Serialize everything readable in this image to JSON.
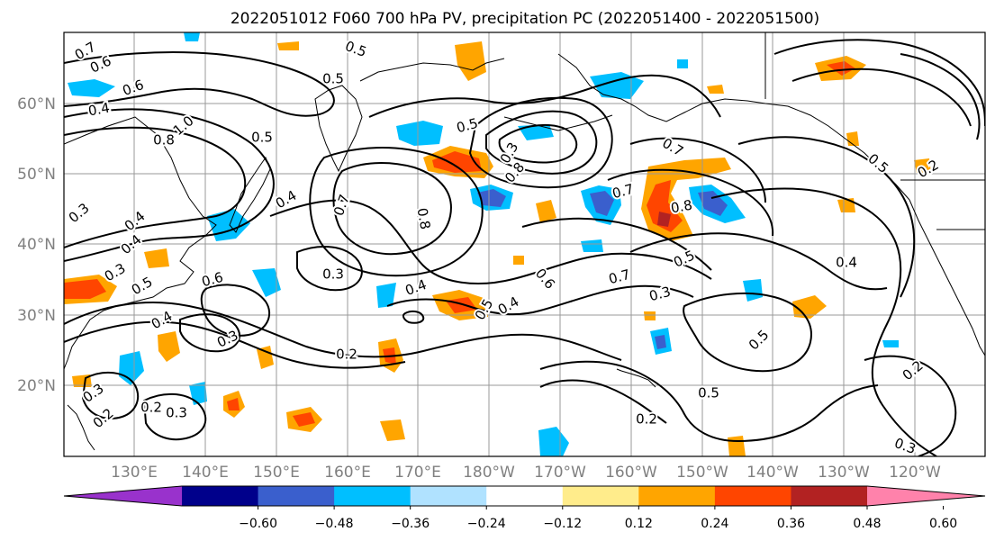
{
  "title": "2022051012 F060 700 hPa PV, precipitation PC (2022051400 - 2022051500)",
  "map": {
    "lat_labels": [
      "60°N",
      "50°N",
      "40°N",
      "30°N",
      "20°N"
    ],
    "lon_labels": [
      "130°E",
      "140°E",
      "150°E",
      "160°E",
      "170°E",
      "180°W",
      "170°W",
      "160°W",
      "150°W",
      "140°W",
      "130°W",
      "120°W"
    ],
    "gridlines": true,
    "contour_labels": [
      "0.7",
      "0.6",
      "0.6",
      "0.4",
      "0.5",
      "0.5",
      "1.0",
      "0.8",
      "0.5",
      "0.7",
      "0.5",
      "0.3",
      "0.8",
      "0.8",
      "0.4",
      "0.7",
      "0.8",
      "0.7",
      "0.3",
      "0.4",
      "0.4",
      "0.3",
      "0.5",
      "0.6",
      "0.3",
      "0.4",
      "0.5",
      "0.6",
      "0.7",
      "0.5",
      "0.3",
      "0.4",
      "0.2",
      "0.3",
      "0.4",
      "0.5",
      "0.5",
      "0.2",
      "0.2",
      "0.3",
      "0.2",
      "0.3",
      "0.2",
      "0.3",
      "0.2",
      "0.5",
      "0.4"
    ]
  },
  "colorbar": {
    "tick_labels": [
      "−0.60",
      "−0.48",
      "−0.36",
      "−0.24",
      "−0.12",
      "0.12",
      "0.24",
      "0.36",
      "0.48",
      "0.60"
    ],
    "colors": [
      "#9932cc",
      "#00008b",
      "#3a5fcd",
      "#00bfff",
      "#b0e2ff",
      "#ffffff",
      "#ffec8b",
      "#ffa500",
      "#ff4500",
      "#b22222",
      "#ff82ab"
    ]
  }
}
